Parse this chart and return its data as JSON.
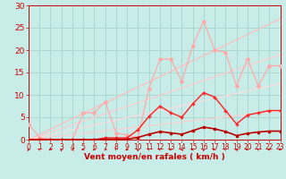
{
  "background_color": "#c8ece8",
  "grid_color": "#a8d4d0",
  "xlabel": "Vent moyen/en rafales ( km/h )",
  "xlabel_color": "#cc0000",
  "xlabel_fontsize": 6.5,
  "tick_color": "#cc0000",
  "ytick_fontsize": 6.5,
  "xtick_fontsize": 5.5,
  "xlim": [
    0,
    23
  ],
  "ylim": [
    0,
    30
  ],
  "yticks": [
    0,
    5,
    10,
    15,
    20,
    25,
    30
  ],
  "xticks": [
    0,
    1,
    2,
    3,
    4,
    5,
    6,
    7,
    8,
    9,
    10,
    11,
    12,
    13,
    14,
    15,
    16,
    17,
    18,
    19,
    20,
    21,
    22,
    23
  ],
  "ref_lines": [
    {
      "x": [
        0,
        23
      ],
      "y": [
        0,
        27.0
      ],
      "color": "#ffbbbb",
      "lw": 0.8
    },
    {
      "x": [
        0,
        23
      ],
      "y": [
        0,
        19.0
      ],
      "color": "#ffcccc",
      "lw": 0.8
    },
    {
      "x": [
        0,
        23
      ],
      "y": [
        0,
        12.5
      ],
      "color": "#ffdddd",
      "lw": 0.8
    },
    {
      "x": [
        0,
        23
      ],
      "y": [
        0,
        6.5
      ],
      "color": "#ffd0d0",
      "lw": 0.8
    }
  ],
  "series": [
    {
      "x": [
        0,
        1,
        2,
        3,
        4,
        5,
        6,
        7,
        8,
        9,
        10,
        11,
        12,
        13,
        14,
        15,
        16,
        17,
        18,
        19,
        20,
        21,
        22,
        23
      ],
      "y": [
        3.5,
        0.5,
        0.0,
        0.0,
        0.0,
        6.0,
        6.0,
        8.5,
        1.5,
        1.0,
        0.5,
        11.5,
        18.0,
        18.0,
        13.0,
        21.0,
        26.5,
        20.0,
        19.5,
        12.0,
        18.0,
        12.0,
        16.5,
        16.5
      ],
      "color": "#ffaaaa",
      "lw": 0.9,
      "marker": "D",
      "ms": 2.0
    },
    {
      "x": [
        0,
        1,
        2,
        3,
        4,
        5,
        6,
        7,
        8,
        9,
        10,
        11,
        12,
        13,
        14,
        15,
        16,
        17,
        18,
        19,
        20,
        21,
        22,
        23
      ],
      "y": [
        0.0,
        0.0,
        0.0,
        0.0,
        0.0,
        0.0,
        0.0,
        0.4,
        0.4,
        0.4,
        2.2,
        5.2,
        7.5,
        6.0,
        5.0,
        8.0,
        10.5,
        9.5,
        6.5,
        3.5,
        5.5,
        6.0,
        6.5,
        6.5
      ],
      "color": "#ff2222",
      "lw": 1.0,
      "marker": "+",
      "ms": 3.0
    },
    {
      "x": [
        0,
        1,
        2,
        3,
        4,
        5,
        6,
        7,
        8,
        9,
        10,
        11,
        12,
        13,
        14,
        15,
        16,
        17,
        18,
        19,
        20,
        21,
        22,
        23
      ],
      "y": [
        0.0,
        0.0,
        0.0,
        0.0,
        0.0,
        0.0,
        0.0,
        0.1,
        0.1,
        0.1,
        0.5,
        1.2,
        1.8,
        1.5,
        1.2,
        2.0,
        2.8,
        2.4,
        1.8,
        0.9,
        1.4,
        1.7,
        1.9,
        1.9
      ],
      "color": "#bb0000",
      "lw": 1.2,
      "marker": "s",
      "ms": 1.5
    }
  ],
  "wind_arrow_angles": [
    230,
    160,
    210,
    260,
    320,
    190,
    210,
    355,
    130,
    210,
    255,
    145,
    165,
    205,
    315,
    185,
    255,
    205,
    155,
    305,
    205,
    165,
    185,
    205
  ]
}
